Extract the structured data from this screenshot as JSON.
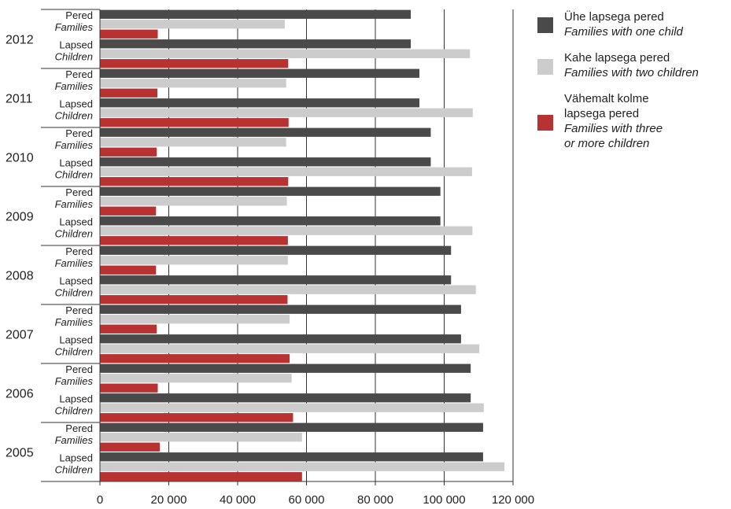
{
  "chart_data": {
    "type": "bar",
    "orientation": "horizontal",
    "years": [
      "2012",
      "2011",
      "2010",
      "2009",
      "2008",
      "2007",
      "2006",
      "2005"
    ],
    "subgroups": [
      {
        "label_et": "Pered",
        "label_en": "Families"
      },
      {
        "label_et": "Lapsed",
        "label_en": "Children"
      }
    ],
    "xlim": [
      0,
      120000
    ],
    "xticks": [
      0,
      20000,
      40000,
      60000,
      80000,
      100000,
      120000
    ],
    "xtick_labels": [
      "0",
      "20 000",
      "40 000",
      "60 000",
      "80 000",
      "100 000",
      "120 000"
    ],
    "grid": "vertical",
    "legend_position": "right",
    "series": [
      {
        "name_et": "Ühe lapsega pered",
        "name_en": "Families with one child",
        "color": "#4a4a4a",
        "values": {
          "Pered": [
            90300,
            92800,
            96100,
            98900,
            102000,
            104900,
            107700,
            111300
          ],
          "Lapsed": [
            90300,
            92800,
            96100,
            98900,
            102000,
            104900,
            107700,
            111300
          ]
        }
      },
      {
        "name_et": "Kahe lapsega pered",
        "name_en": "Families with two children",
        "color": "#cccccc",
        "values": {
          "Pered": [
            53700,
            54100,
            54100,
            54300,
            54600,
            55100,
            55700,
            58700
          ],
          "Lapsed": [
            107500,
            108300,
            108100,
            108200,
            109200,
            110200,
            111500,
            117500
          ]
        }
      },
      {
        "name_et": "Vähemalt kolme\nlapsega pered",
        "name_en": "Families with three\nor more children",
        "color": "#b83232",
        "values": {
          "Pered": [
            16800,
            16700,
            16500,
            16300,
            16300,
            16500,
            16800,
            17400
          ],
          "Lapsed": [
            54700,
            54800,
            54700,
            54600,
            54500,
            55100,
            56100,
            58700
          ]
        }
      }
    ]
  }
}
